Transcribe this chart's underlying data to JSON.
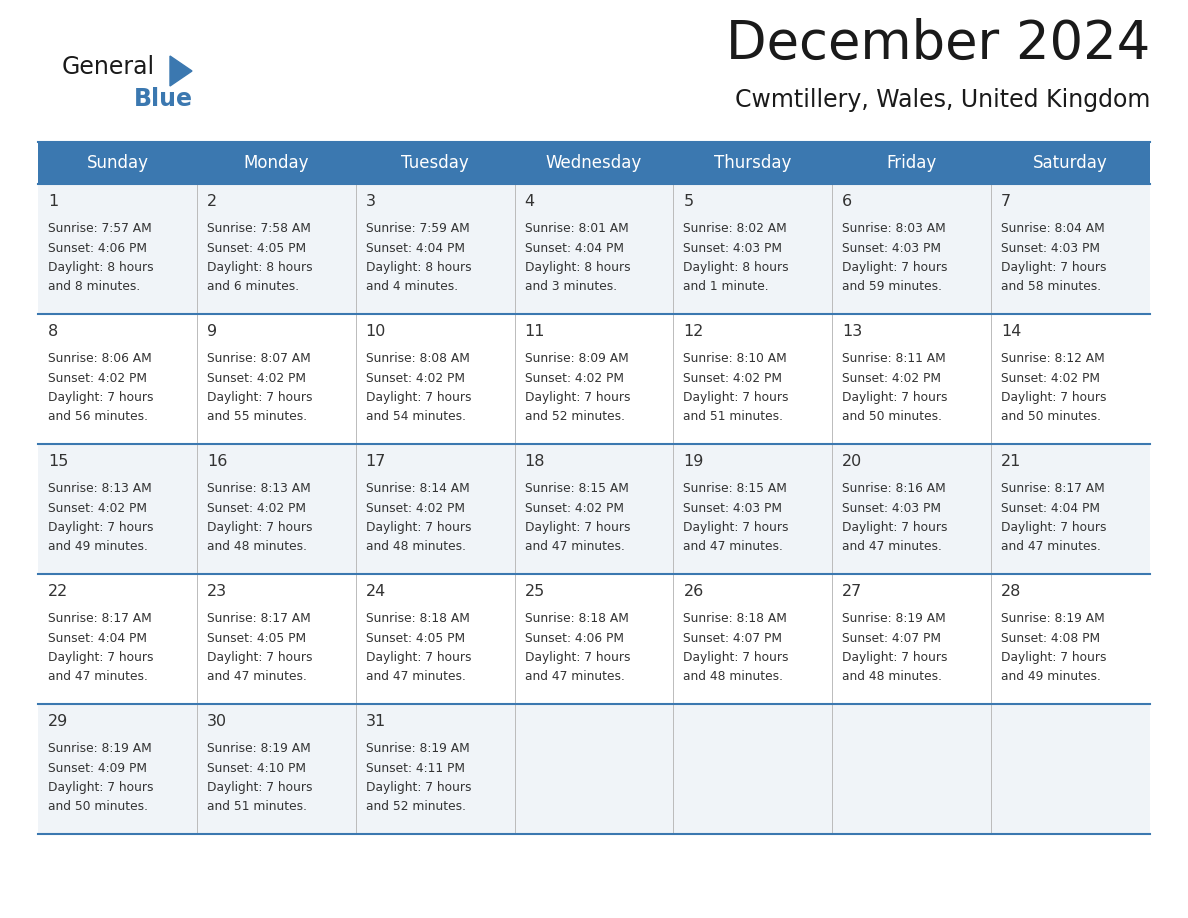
{
  "title": "December 2024",
  "subtitle": "Cwmtillery, Wales, United Kingdom",
  "days_of_week": [
    "Sunday",
    "Monday",
    "Tuesday",
    "Wednesday",
    "Thursday",
    "Friday",
    "Saturday"
  ],
  "header_bg_color": "#3b78b0",
  "header_text_color": "#ffffff",
  "cell_bg_even": "#f0f4f8",
  "cell_bg_odd": "#ffffff",
  "divider_color": "#3b78b0",
  "title_color": "#1a1a1a",
  "subtitle_color": "#1a1a1a",
  "day_num_color": "#333333",
  "cell_text_color": "#333333",
  "calendar_data": [
    [
      {
        "day": 1,
        "sunrise": "7:57 AM",
        "sunset": "4:06 PM",
        "daylight_hours": "8 hours",
        "daylight_mins": "and 8 minutes."
      },
      {
        "day": 2,
        "sunrise": "7:58 AM",
        "sunset": "4:05 PM",
        "daylight_hours": "8 hours",
        "daylight_mins": "and 6 minutes."
      },
      {
        "day": 3,
        "sunrise": "7:59 AM",
        "sunset": "4:04 PM",
        "daylight_hours": "8 hours",
        "daylight_mins": "and 4 minutes."
      },
      {
        "day": 4,
        "sunrise": "8:01 AM",
        "sunset": "4:04 PM",
        "daylight_hours": "8 hours",
        "daylight_mins": "and 3 minutes."
      },
      {
        "day": 5,
        "sunrise": "8:02 AM",
        "sunset": "4:03 PM",
        "daylight_hours": "8 hours",
        "daylight_mins": "and 1 minute."
      },
      {
        "day": 6,
        "sunrise": "8:03 AM",
        "sunset": "4:03 PM",
        "daylight_hours": "7 hours",
        "daylight_mins": "and 59 minutes."
      },
      {
        "day": 7,
        "sunrise": "8:04 AM",
        "sunset": "4:03 PM",
        "daylight_hours": "7 hours",
        "daylight_mins": "and 58 minutes."
      }
    ],
    [
      {
        "day": 8,
        "sunrise": "8:06 AM",
        "sunset": "4:02 PM",
        "daylight_hours": "7 hours",
        "daylight_mins": "and 56 minutes."
      },
      {
        "day": 9,
        "sunrise": "8:07 AM",
        "sunset": "4:02 PM",
        "daylight_hours": "7 hours",
        "daylight_mins": "and 55 minutes."
      },
      {
        "day": 10,
        "sunrise": "8:08 AM",
        "sunset": "4:02 PM",
        "daylight_hours": "7 hours",
        "daylight_mins": "and 54 minutes."
      },
      {
        "day": 11,
        "sunrise": "8:09 AM",
        "sunset": "4:02 PM",
        "daylight_hours": "7 hours",
        "daylight_mins": "and 52 minutes."
      },
      {
        "day": 12,
        "sunrise": "8:10 AM",
        "sunset": "4:02 PM",
        "daylight_hours": "7 hours",
        "daylight_mins": "and 51 minutes."
      },
      {
        "day": 13,
        "sunrise": "8:11 AM",
        "sunset": "4:02 PM",
        "daylight_hours": "7 hours",
        "daylight_mins": "and 50 minutes."
      },
      {
        "day": 14,
        "sunrise": "8:12 AM",
        "sunset": "4:02 PM",
        "daylight_hours": "7 hours",
        "daylight_mins": "and 50 minutes."
      }
    ],
    [
      {
        "day": 15,
        "sunrise": "8:13 AM",
        "sunset": "4:02 PM",
        "daylight_hours": "7 hours",
        "daylight_mins": "and 49 minutes."
      },
      {
        "day": 16,
        "sunrise": "8:13 AM",
        "sunset": "4:02 PM",
        "daylight_hours": "7 hours",
        "daylight_mins": "and 48 minutes."
      },
      {
        "day": 17,
        "sunrise": "8:14 AM",
        "sunset": "4:02 PM",
        "daylight_hours": "7 hours",
        "daylight_mins": "and 48 minutes."
      },
      {
        "day": 18,
        "sunrise": "8:15 AM",
        "sunset": "4:02 PM",
        "daylight_hours": "7 hours",
        "daylight_mins": "and 47 minutes."
      },
      {
        "day": 19,
        "sunrise": "8:15 AM",
        "sunset": "4:03 PM",
        "daylight_hours": "7 hours",
        "daylight_mins": "and 47 minutes."
      },
      {
        "day": 20,
        "sunrise": "8:16 AM",
        "sunset": "4:03 PM",
        "daylight_hours": "7 hours",
        "daylight_mins": "and 47 minutes."
      },
      {
        "day": 21,
        "sunrise": "8:17 AM",
        "sunset": "4:04 PM",
        "daylight_hours": "7 hours",
        "daylight_mins": "and 47 minutes."
      }
    ],
    [
      {
        "day": 22,
        "sunrise": "8:17 AM",
        "sunset": "4:04 PM",
        "daylight_hours": "7 hours",
        "daylight_mins": "and 47 minutes."
      },
      {
        "day": 23,
        "sunrise": "8:17 AM",
        "sunset": "4:05 PM",
        "daylight_hours": "7 hours",
        "daylight_mins": "and 47 minutes."
      },
      {
        "day": 24,
        "sunrise": "8:18 AM",
        "sunset": "4:05 PM",
        "daylight_hours": "7 hours",
        "daylight_mins": "and 47 minutes."
      },
      {
        "day": 25,
        "sunrise": "8:18 AM",
        "sunset": "4:06 PM",
        "daylight_hours": "7 hours",
        "daylight_mins": "and 47 minutes."
      },
      {
        "day": 26,
        "sunrise": "8:18 AM",
        "sunset": "4:07 PM",
        "daylight_hours": "7 hours",
        "daylight_mins": "and 48 minutes."
      },
      {
        "day": 27,
        "sunrise": "8:19 AM",
        "sunset": "4:07 PM",
        "daylight_hours": "7 hours",
        "daylight_mins": "and 48 minutes."
      },
      {
        "day": 28,
        "sunrise": "8:19 AM",
        "sunset": "4:08 PM",
        "daylight_hours": "7 hours",
        "daylight_mins": "and 49 minutes."
      }
    ],
    [
      {
        "day": 29,
        "sunrise": "8:19 AM",
        "sunset": "4:09 PM",
        "daylight_hours": "7 hours",
        "daylight_mins": "and 50 minutes."
      },
      {
        "day": 30,
        "sunrise": "8:19 AM",
        "sunset": "4:10 PM",
        "daylight_hours": "7 hours",
        "daylight_mins": "and 51 minutes."
      },
      {
        "day": 31,
        "sunrise": "8:19 AM",
        "sunset": "4:11 PM",
        "daylight_hours": "7 hours",
        "daylight_mins": "and 52 minutes."
      },
      null,
      null,
      null,
      null
    ]
  ]
}
